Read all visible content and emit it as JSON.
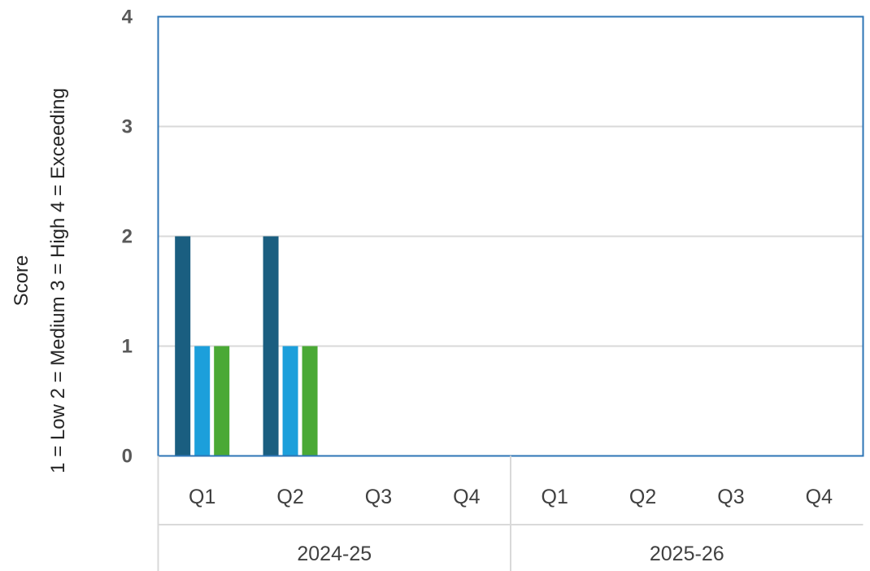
{
  "chart_data": {
    "type": "bar",
    "title": "",
    "ylabel": [
      "Score",
      "1 = Low  2 = Medium  3 = High  4 = Exceeding"
    ],
    "ylim": [
      0,
      4
    ],
    "yticks": [
      "0",
      "1",
      "2",
      "3",
      "4"
    ],
    "categories": [
      "Q1",
      "Q2",
      "Q3",
      "Q4",
      "Q1",
      "Q2",
      "Q3",
      "Q4"
    ],
    "groups": [
      {
        "label": "2024-25",
        "span": 4
      },
      {
        "label": "2025-26",
        "span": 4
      }
    ],
    "series": [
      {
        "color": "#1a5e80",
        "values": [
          2,
          2,
          null,
          null,
          null,
          null,
          null,
          null
        ]
      },
      {
        "color": "#1c9fdb",
        "values": [
          1,
          1,
          null,
          null,
          null,
          null,
          null,
          null
        ]
      },
      {
        "color": "#4aa935",
        "values": [
          1,
          1,
          null,
          null,
          null,
          null,
          null,
          null
        ]
      }
    ],
    "grid": true,
    "legend": "none"
  }
}
